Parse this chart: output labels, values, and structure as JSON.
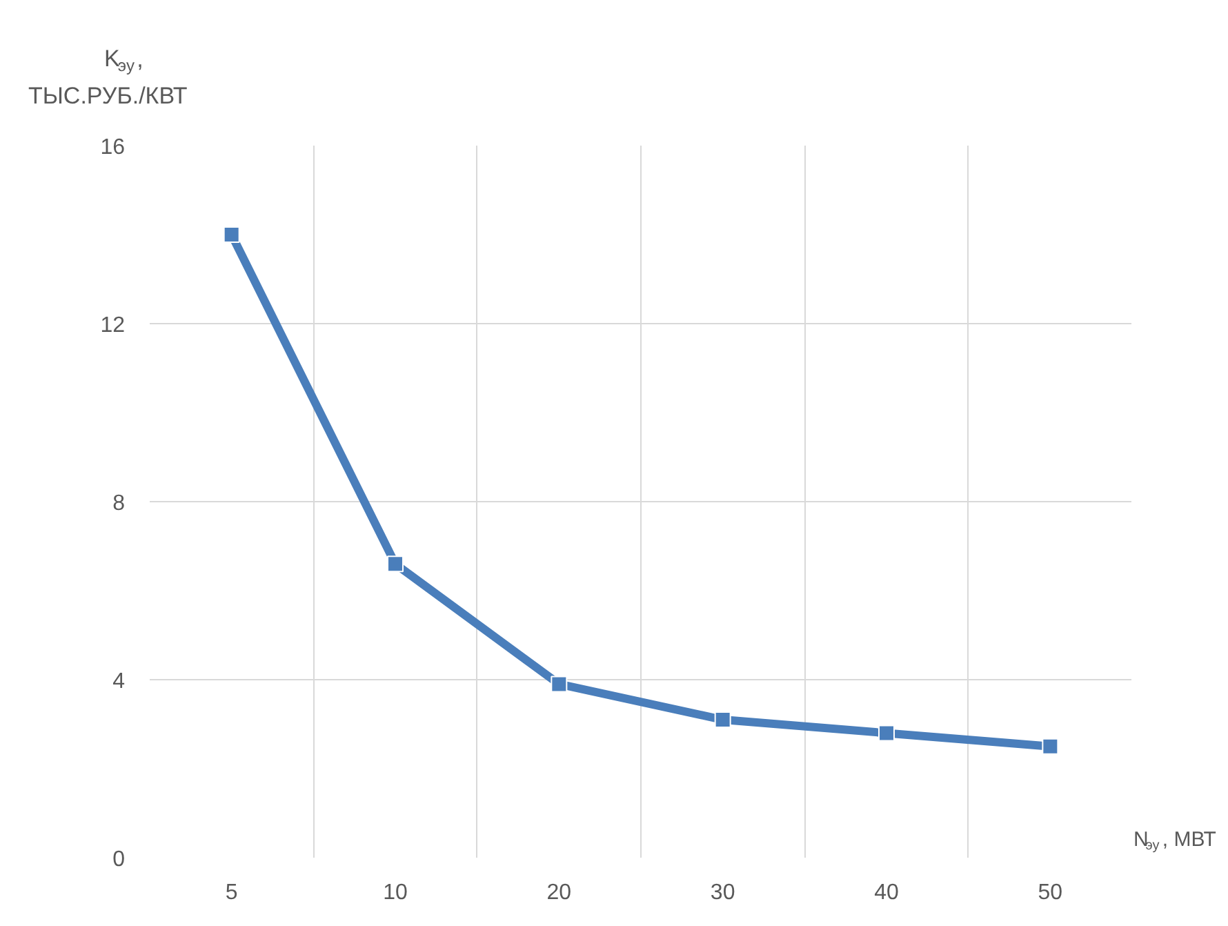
{
  "chart_data": {
    "type": "line",
    "categories": [
      "5",
      "10",
      "20",
      "30",
      "40",
      "50"
    ],
    "series": [
      {
        "color": "#4a7ebb",
        "values": [
          14,
          6.6,
          3.9,
          3.1,
          2.8,
          2.5
        ]
      }
    ],
    "ylabel": "K$_{эу}$,\nТЫС.РУБ./КВТ",
    "xlabel": "N$_{эу}$, МВТ",
    "ylim": [
      0,
      16
    ],
    "yticks": [
      0,
      4,
      8,
      12,
      16
    ],
    "grid": true,
    "marker": "square",
    "line_style": "solid"
  }
}
